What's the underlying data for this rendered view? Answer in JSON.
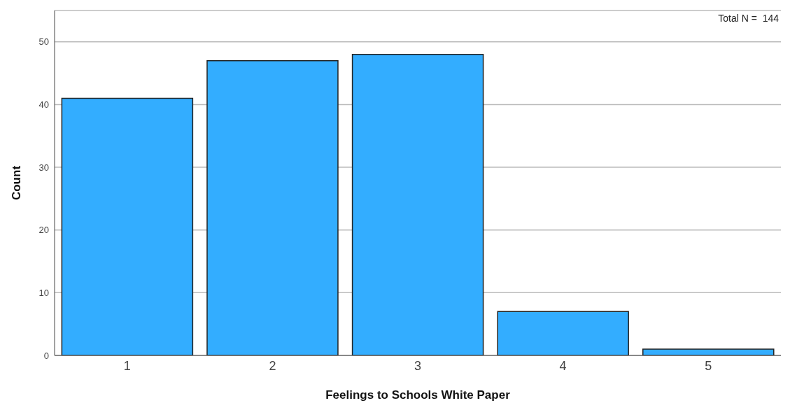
{
  "chart_data": {
    "type": "bar",
    "xlabel": "Feelings to Schools White Paper",
    "ylabel": "Count",
    "categories": [
      "1",
      "2",
      "3",
      "4",
      "5"
    ],
    "values": [
      41,
      47,
      48,
      7,
      1
    ],
    "color": "#33adff",
    "ylim": [
      0,
      55
    ],
    "yticks": [
      0,
      10,
      20,
      30,
      40,
      50
    ],
    "grid": "y",
    "annotations": [
      "Total N =  144"
    ]
  }
}
